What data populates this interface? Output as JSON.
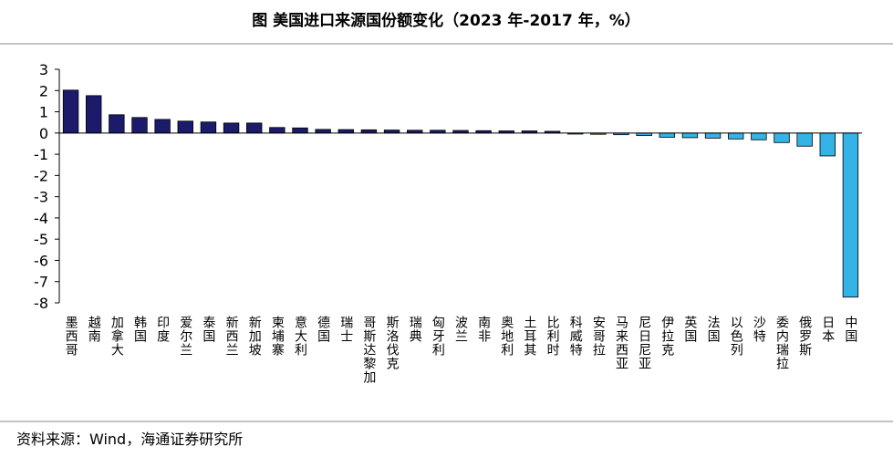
{
  "chart_data": {
    "type": "bar",
    "title": "图  美国进口来源国份额变化（2023 年-2017 年，%）",
    "source": "资料来源：Wind，海通证券研究所",
    "categories": [
      "墨西哥",
      "越南",
      "加拿大",
      "韩国",
      "印度",
      "爱尔兰",
      "泰国",
      "新西兰",
      "新加坡",
      "柬埔寨",
      "意大利",
      "德国",
      "瑞士",
      "哥斯达黎加",
      "斯洛伐克",
      "瑞典",
      "匈牙利",
      "波兰",
      "南非",
      "奥地利",
      "土耳其",
      "比利时",
      "科威特",
      "安哥拉",
      "马来西亚",
      "尼日尼亚",
      "伊拉克",
      "英国",
      "法国",
      "以色列",
      "沙特",
      "委内瑞拉",
      "俄罗斯",
      "日本",
      "中国"
    ],
    "values": [
      2.02,
      1.76,
      0.86,
      0.73,
      0.64,
      0.56,
      0.52,
      0.47,
      0.47,
      0.26,
      0.24,
      0.17,
      0.16,
      0.15,
      0.14,
      0.13,
      0.13,
      0.12,
      0.11,
      0.1,
      0.1,
      0.08,
      -0.05,
      -0.06,
      -0.08,
      -0.12,
      -0.2,
      -0.22,
      -0.24,
      -0.28,
      -0.32,
      -0.45,
      -0.62,
      -1.08,
      -7.73
    ],
    "colors": {
      "positive": "#1b1a6b",
      "negative": "#33b3e6"
    },
    "ylim": [
      -8,
      3
    ],
    "yticks": [
      3,
      2,
      1,
      0,
      -1,
      -2,
      -3,
      -4,
      -5,
      -6,
      -7,
      -8
    ],
    "grid": false
  }
}
